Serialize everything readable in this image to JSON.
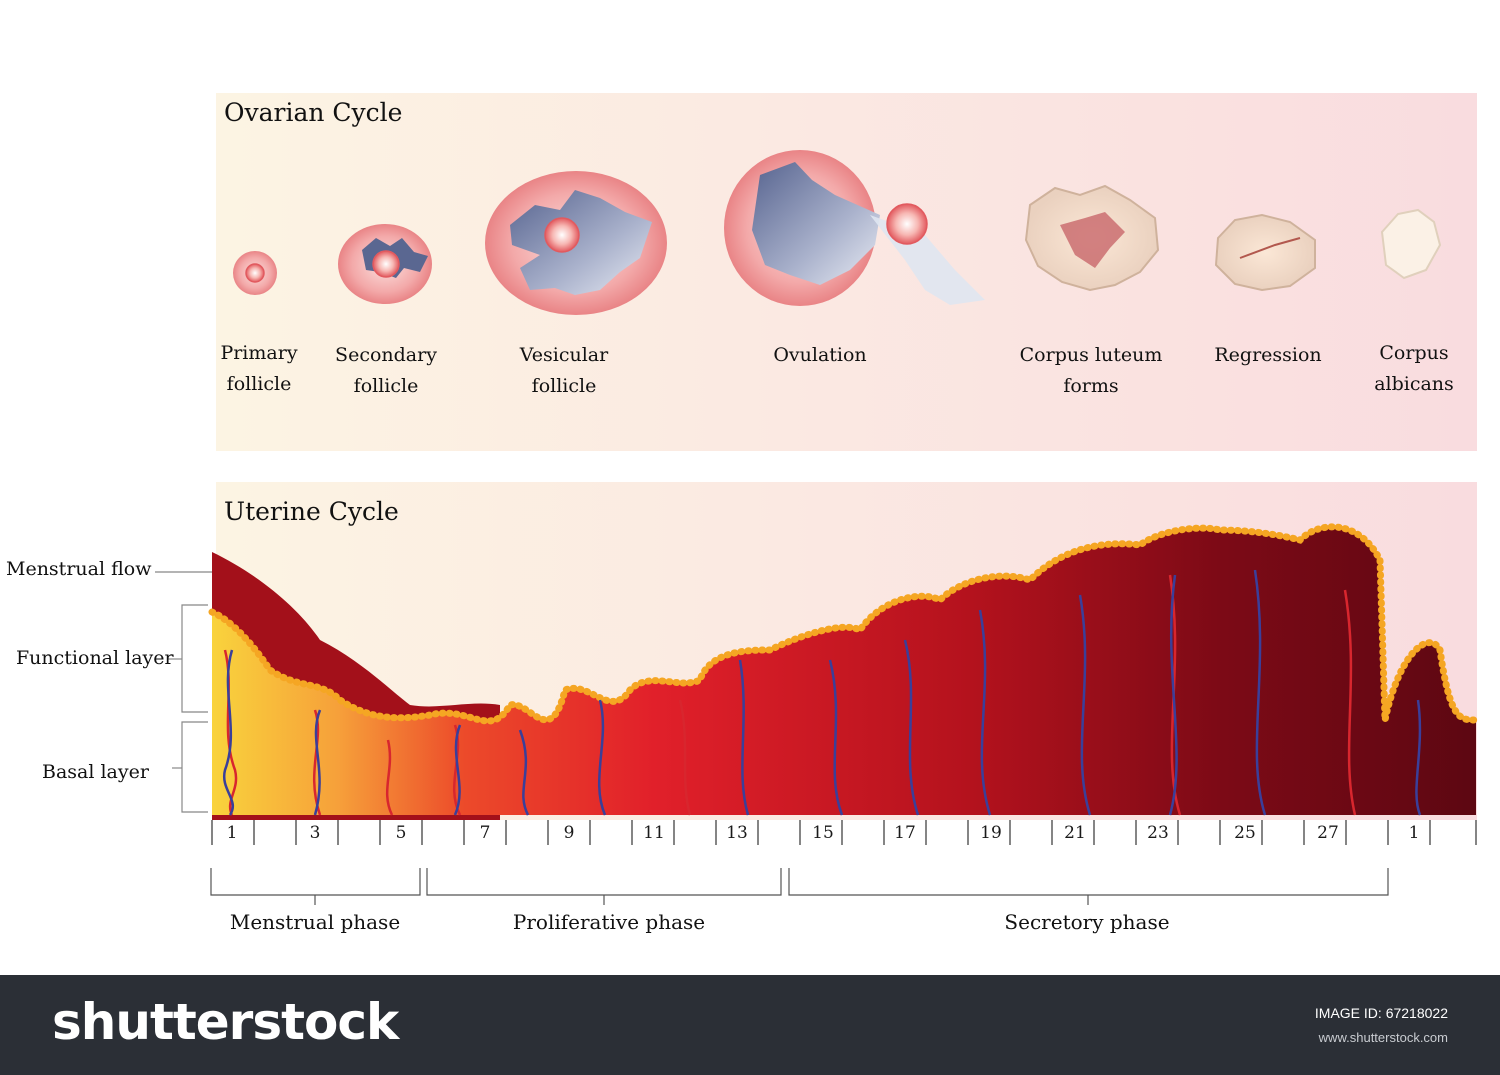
{
  "ovarian": {
    "title": "Ovarian Cycle",
    "stages": [
      {
        "id": "primary",
        "label": "Primary\nfollicle"
      },
      {
        "id": "secondary",
        "label": "Secondary\nfollicle"
      },
      {
        "id": "vesicular",
        "label": "Vesicular\nfollicle"
      },
      {
        "id": "ovulation",
        "label": "Ovulation"
      },
      {
        "id": "corpus-luteum",
        "label": "Corpus luteum\nforms"
      },
      {
        "id": "regression",
        "label": "Regression"
      },
      {
        "id": "corpus-albicans",
        "label": "Corpus\nalbicans"
      }
    ]
  },
  "uterine": {
    "title": "Uterine Cycle",
    "layers": {
      "menstrual_flow": "Menstrual flow",
      "functional_layer": "Functional layer",
      "basal_layer": "Basal layer"
    },
    "days": [
      "1",
      "3",
      "5",
      "7",
      "9",
      "11",
      "13",
      "15",
      "17",
      "19",
      "21",
      "23",
      "25",
      "27",
      "1"
    ],
    "phases": {
      "menstrual": "Menstrual phase",
      "proliferative": "Proliferative phase",
      "secretory": "Secretory phase"
    }
  },
  "footer": {
    "brand": "shutterstock",
    "image_id_label": "IMAGE ID:",
    "image_id": "67218022",
    "site": "www.shutterstock.com"
  },
  "colors": {
    "menstrual_flow": "#a3101a",
    "endometrium_light": "#f7c93a",
    "endometrium_mid": "#e8232a",
    "endometrium_dark": "#6e0a14",
    "epithelium": "#f5a623",
    "artery": "#d8262e",
    "vein": "#3a3f9a"
  }
}
